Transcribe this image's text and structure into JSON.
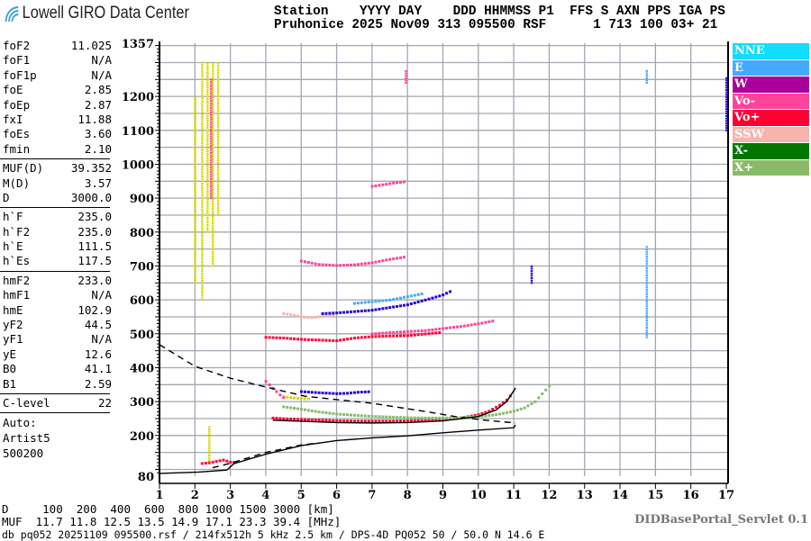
{
  "header": {
    "logo_text": "Lowell GIRO Data Center",
    "line1": "Station    YYYY DAY    DDD HHMMSS P1  FFS S AXN PPS IGA PS",
    "line2": "Pruhonice 2025 Nov09 313 095500 RSF      1 713 100 03+ 21"
  },
  "params": [
    {
      "group": [
        [
          "foF2",
          "11.025"
        ],
        [
          "foF1",
          "N/A"
        ],
        [
          "foF1p",
          "N/A"
        ],
        [
          "foE",
          "2.85"
        ],
        [
          "foEp",
          "2.87"
        ],
        [
          "fxI",
          "11.88"
        ],
        [
          "foEs",
          "3.60"
        ],
        [
          "fmin",
          "2.10"
        ]
      ]
    },
    {
      "group": [
        [
          "MUF(D)",
          "39.352"
        ],
        [
          "M(D)",
          "3.57"
        ],
        [
          "D",
          "3000.0"
        ]
      ]
    },
    {
      "group": [
        [
          "h`F",
          "235.0"
        ],
        [
          "h`F2",
          "235.0"
        ],
        [
          "h`E",
          "111.5"
        ],
        [
          "h`Es",
          "117.5"
        ]
      ]
    },
    {
      "group": [
        [
          "hmF2",
          "233.0"
        ],
        [
          "hmF1",
          "N/A"
        ],
        [
          "hmE",
          "102.9"
        ],
        [
          "yF2",
          "44.5"
        ],
        [
          "yF1",
          "N/A"
        ],
        [
          "yE",
          "12.6"
        ],
        [
          "B0",
          "41.1"
        ],
        [
          "B1",
          "2.59"
        ]
      ]
    },
    {
      "group": [
        [
          "C-level",
          "22"
        ]
      ]
    }
  ],
  "autoscaler": [
    "Auto:",
    "Artist5",
    "500200"
  ],
  "legend": [
    {
      "label": "NNE",
      "color": "#11ddff"
    },
    {
      "label": "E",
      "color": "#44aaff"
    },
    {
      "label": "W",
      "color": "#aa0099"
    },
    {
      "label": "Vo-",
      "color": "#ff4499"
    },
    {
      "label": "Vo+",
      "color": "#ff0033"
    },
    {
      "label": "SSW",
      "color": "#f7b4ab"
    },
    {
      "label": "X-",
      "color": "#007700"
    },
    {
      "label": "X+",
      "color": "#88bb66"
    }
  ],
  "muf_table": {
    "d_row": "D     100  200  400  600  800 1000 1500 3000 [km]",
    "muf_row": "MUF  11.7 11.8 12.5 13.5 14.9 17.1 23.3 39.4 [MHz]"
  },
  "footer": "db pq052 20251109 095500.rsf / 214fx512h 5 kHz 2.5 km / DPS-4D PQ052 50 / 50.0 N 14.6 E",
  "servlet": "DIDBasePortal_Servlet 0.1",
  "chart_data": {
    "type": "scatter",
    "xlim": [
      1,
      17
    ],
    "ylim": [
      80,
      1357
    ],
    "x_ticks": [
      "1",
      "2",
      "3",
      "4",
      "5",
      "6",
      "7",
      "8",
      "9",
      "10",
      "11",
      "12",
      "13",
      "14",
      "15",
      "16",
      "17"
    ],
    "y_ticks": [
      "1357",
      "1200",
      "1100",
      "1000",
      "900",
      "800",
      "700",
      "600",
      "500",
      "400",
      "300",
      "200",
      "80"
    ],
    "y_tick_values": [
      1357,
      1200,
      1100,
      1000,
      900,
      800,
      700,
      600,
      500,
      400,
      300,
      200,
      80
    ],
    "grid": true,
    "extra_colors": {
      "yellow": "#d8d800",
      "blue": "#2200dd"
    },
    "echo_traces": [
      {
        "color": "#ff0033",
        "points": [
          [
            4.2,
            252
          ],
          [
            4.5,
            250
          ],
          [
            5,
            248
          ],
          [
            5.5,
            246
          ],
          [
            6,
            244
          ],
          [
            6.5,
            243
          ],
          [
            7,
            243
          ],
          [
            7.5,
            243
          ],
          [
            8,
            244
          ],
          [
            8.5,
            245
          ],
          [
            9,
            247
          ],
          [
            9.5,
            252
          ],
          [
            10,
            262
          ],
          [
            10.3,
            272
          ],
          [
            10.6,
            290
          ],
          [
            10.8,
            305
          ],
          [
            11,
            330
          ]
        ]
      },
      {
        "color": "#88bb66",
        "points": [
          [
            4.5,
            285
          ],
          [
            5,
            278
          ],
          [
            5.5,
            270
          ],
          [
            6,
            264
          ],
          [
            6.5,
            260
          ],
          [
            7,
            257
          ],
          [
            7.5,
            255
          ],
          [
            8,
            253
          ],
          [
            8.5,
            252
          ],
          [
            9,
            252
          ],
          [
            9.5,
            253
          ],
          [
            10,
            256
          ],
          [
            10.5,
            262
          ],
          [
            11,
            272
          ],
          [
            11.3,
            282
          ],
          [
            11.6,
            300
          ],
          [
            11.9,
            335
          ],
          [
            12.1,
            360
          ]
        ]
      },
      {
        "color": "#ff0033",
        "points": [
          [
            2.2,
            118
          ],
          [
            2.4,
            120
          ],
          [
            2.6,
            124
          ],
          [
            2.8,
            128
          ],
          [
            3.0,
            122
          ],
          [
            3.2,
            120
          ]
        ]
      },
      {
        "color": "#ff0033",
        "points": [
          [
            4.0,
            490
          ],
          [
            4.5,
            488
          ],
          [
            5,
            484
          ],
          [
            5.5,
            482
          ],
          [
            6,
            480
          ],
          [
            6.5,
            488
          ],
          [
            7,
            492
          ],
          [
            7.5,
            494
          ],
          [
            8,
            495
          ],
          [
            8.5,
            500
          ],
          [
            9,
            505
          ]
        ]
      },
      {
        "color": "#ff4499",
        "points": [
          [
            7,
            500
          ],
          [
            7.5,
            504
          ],
          [
            8,
            507
          ],
          [
            8.5,
            510
          ],
          [
            9,
            516
          ],
          [
            9.5,
            522
          ],
          [
            10,
            530
          ],
          [
            10.5,
            540
          ]
        ]
      },
      {
        "color": "#f7b4ab",
        "points": [
          [
            4.5,
            560
          ],
          [
            4.8,
            555
          ],
          [
            5,
            550
          ],
          [
            5.3,
            548
          ],
          [
            5.6,
            552
          ],
          [
            6,
            555
          ]
        ]
      },
      {
        "color": "#2200dd",
        "points": [
          [
            5.6,
            560
          ],
          [
            6,
            562
          ],
          [
            6.5,
            566
          ],
          [
            7,
            570
          ],
          [
            7.5,
            578
          ],
          [
            8,
            586
          ],
          [
            8.5,
            600
          ],
          [
            9,
            615
          ],
          [
            9.3,
            630
          ]
        ]
      },
      {
        "color": "#44aaff",
        "points": [
          [
            6.5,
            590
          ],
          [
            7,
            595
          ],
          [
            7.5,
            600
          ],
          [
            8,
            610
          ],
          [
            8.5,
            620
          ]
        ]
      },
      {
        "color": "#2200dd",
        "points": [
          [
            5,
            330
          ],
          [
            5.3,
            328
          ],
          [
            5.6,
            326
          ],
          [
            6,
            324
          ],
          [
            6.3,
            325
          ],
          [
            6.6,
            328
          ],
          [
            7,
            330
          ]
        ]
      },
      {
        "color": "#d8d800",
        "points": [
          [
            4.5,
            315
          ],
          [
            4.7,
            312
          ],
          [
            4.9,
            310
          ],
          [
            5.1,
            309
          ],
          [
            5.3,
            310
          ]
        ]
      },
      {
        "color": "#ff4499",
        "points": [
          [
            4,
            360
          ],
          [
            4.2,
            340
          ],
          [
            4.4,
            320
          ],
          [
            4.6,
            305
          ]
        ]
      },
      {
        "color": "#ff4499",
        "points": [
          [
            5,
            715
          ],
          [
            5.5,
            705
          ],
          [
            6,
            702
          ],
          [
            6.5,
            704
          ],
          [
            7,
            710
          ],
          [
            7.5,
            720
          ],
          [
            8,
            728
          ]
        ]
      },
      {
        "color": "#ff4499",
        "points": [
          [
            7,
            935
          ],
          [
            7.3,
            940
          ],
          [
            7.6,
            945
          ],
          [
            8,
            950
          ]
        ]
      }
    ],
    "spread_streaks": [
      {
        "color": "#d8d800",
        "f": 2.0,
        "h": [
          650,
          1200
        ]
      },
      {
        "color": "#d8d800",
        "f": 2.2,
        "h": [
          600,
          1300
        ]
      },
      {
        "color": "#d8d800",
        "f": 2.35,
        "h": [
          800,
          1300
        ]
      },
      {
        "color": "#d8d800",
        "f": 2.5,
        "h": [
          700,
          1300
        ]
      },
      {
        "color": "#d8d800",
        "f": 2.65,
        "h": [
          850,
          1300
        ]
      },
      {
        "color": "#ff4499",
        "f": 2.45,
        "h": [
          900,
          1250
        ]
      },
      {
        "color": "#d8d800",
        "f": 2.4,
        "h": [
          120,
          230
        ]
      },
      {
        "color": "#44aaff",
        "f": 14.75,
        "h": [
          490,
          760
        ]
      },
      {
        "color": "#2200dd",
        "f": 11.5,
        "h": [
          650,
          700
        ]
      },
      {
        "color": "#44aaff",
        "f": 14.75,
        "h": [
          1240,
          1280
        ]
      },
      {
        "color": "#ff4499",
        "f": 7.95,
        "h": [
          1240,
          1280
        ]
      },
      {
        "color": "#2200dd",
        "f": 17.0,
        "h": [
          1100,
          1260
        ]
      }
    ],
    "profile_solid": [
      [
        1,
        88
      ],
      [
        2.1,
        92
      ],
      [
        2.9,
        98
      ],
      [
        3.1,
        117
      ],
      [
        4,
        145
      ],
      [
        5,
        170
      ],
      [
        6,
        185
      ],
      [
        7,
        193
      ],
      [
        8,
        199
      ],
      [
        9,
        208
      ],
      [
        10,
        216
      ],
      [
        11,
        223
      ],
      [
        11.05,
        231
      ]
    ],
    "fitted_trace": [
      [
        4.2,
        245
      ],
      [
        5,
        242
      ],
      [
        6,
        238
      ],
      [
        7,
        237
      ],
      [
        8,
        238
      ],
      [
        9,
        243
      ],
      [
        10,
        256
      ],
      [
        10.5,
        275
      ],
      [
        10.8,
        300
      ],
      [
        11.05,
        340
      ]
    ],
    "dashed_curve": [
      [
        1,
        468
      ],
      [
        2,
        404
      ],
      [
        3,
        369
      ],
      [
        4,
        343
      ],
      [
        5.1,
        316
      ],
      [
        7,
        295
      ],
      [
        8.5,
        271
      ],
      [
        9.4,
        255
      ],
      [
        10.2,
        245
      ],
      [
        11.05,
        237
      ]
    ],
    "dashed_curve_low": [
      [
        2.5,
        105
      ],
      [
        3,
        118
      ],
      [
        4,
        150
      ],
      [
        5,
        172
      ],
      [
        5.5,
        178
      ]
    ]
  }
}
